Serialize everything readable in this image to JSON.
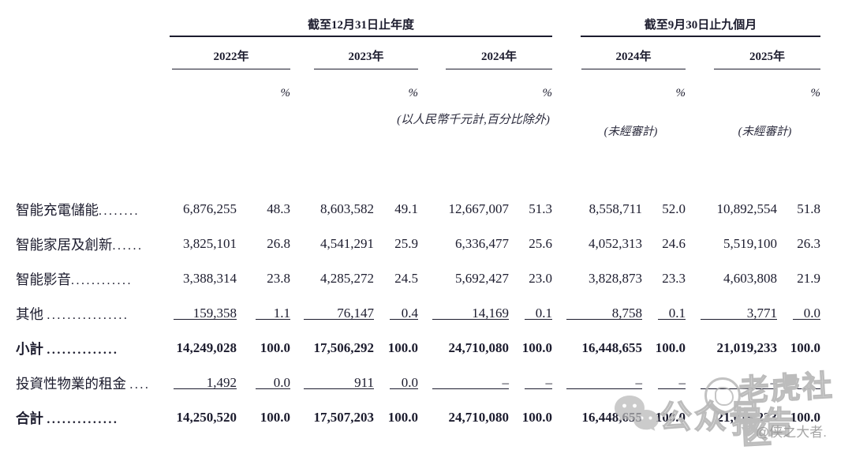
{
  "header": {
    "group1": "截至12月31日止年度",
    "group2": "截至9月30日止九個月",
    "years": [
      "2022年",
      "2023年",
      "2024年",
      "2024年",
      "2025年"
    ],
    "percent_symbol": "%",
    "note": "(以人民幣千元計,百分比除外)",
    "unaudited_1": "(未經審計)",
    "unaudited_2": "(未經審計)"
  },
  "rows": [
    {
      "label": "智能充電儲能",
      "dots": "........",
      "bold": false,
      "ruled": false,
      "cells": [
        "6,876,255",
        "48.3",
        "8,603,582",
        "49.1",
        "12,667,007",
        "51.3",
        "8,558,711",
        "52.0",
        "10,892,554",
        "51.8"
      ]
    },
    {
      "label": "智能家居及創新",
      "dots": "......",
      "bold": false,
      "ruled": false,
      "cells": [
        "3,825,101",
        "26.8",
        "4,541,291",
        "25.9",
        "6,336,477",
        "25.6",
        "4,052,313",
        "24.6",
        "5,519,100",
        "26.3"
      ]
    },
    {
      "label": "智能影音",
      "dots": "............",
      "bold": false,
      "ruled": false,
      "cells": [
        "3,388,314",
        "23.8",
        "4,285,272",
        "24.5",
        "5,692,427",
        "23.0",
        "3,828,873",
        "23.3",
        "4,603,808",
        "21.9"
      ]
    },
    {
      "label": "其他 ",
      "dots": "................",
      "bold": false,
      "ruled": true,
      "cells": [
        "159,358",
        "1.1",
        "76,147",
        "0.4",
        "14,169",
        "0.1",
        "8,758",
        "0.1",
        "3,771",
        "0.0"
      ]
    },
    {
      "label": "小計 ",
      "dots": "..............",
      "bold": true,
      "ruled": false,
      "cells": [
        "14,249,028",
        "100.0",
        "17,506,292",
        "100.0",
        "24,710,080",
        "100.0",
        "16,448,655",
        "100.0",
        "21,019,233",
        "100.0"
      ]
    },
    {
      "label": "投資性物業的租金 ",
      "dots": "....",
      "bold": false,
      "ruled": true,
      "cells": [
        "1,492",
        "0.0",
        "911",
        "0.0",
        "–",
        "–",
        "–",
        "–",
        "–",
        "–"
      ]
    },
    {
      "label": "合計 ",
      "dots": "..............",
      "bold": true,
      "ruled": false,
      "cells": [
        "14,250,520",
        "100.0",
        "17,507,203",
        "100.0",
        "24,710,080",
        "100.0",
        "16,448,655",
        "100.0",
        "21,019,233",
        "100.0"
      ]
    }
  ],
  "colors": {
    "text": "#1c1c2e",
    "rule": "#1c1c2e",
    "watermark_gray": "#bcbcbc"
  },
  "watermark": {
    "wechat_icon": "wechat-bubbles-icon",
    "account_label": "公众号",
    "stamp_icon": "circular-stamp-icon",
    "community_text": "老虎社区",
    "report_text": "报告",
    "credit": "@侠之大者."
  }
}
